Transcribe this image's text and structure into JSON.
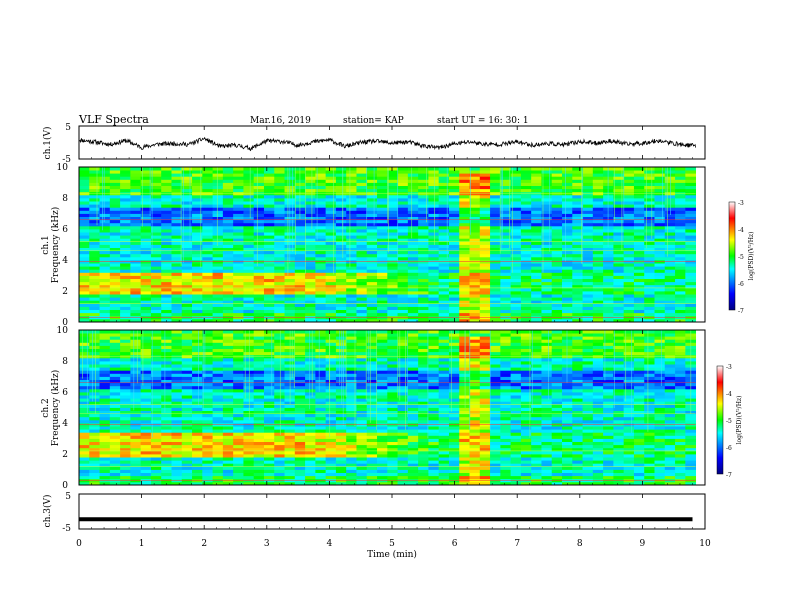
{
  "header": {
    "title": "VLF Spectra",
    "date": "Mar.16, 2019",
    "station": "station= KAP",
    "start_time": "start  UT =   16: 30: 1"
  },
  "chart_data": [
    {
      "type": "line",
      "panel": "ch1-waveform",
      "ylabel": "ch.1(V)",
      "ylim": [
        -5,
        5
      ],
      "y_ticks": [
        "5",
        "-5"
      ],
      "xlim": [
        0,
        10
      ],
      "x_minutes": [
        0,
        0.25,
        0.5,
        0.75,
        1,
        1.25,
        1.5,
        1.75,
        2,
        2.25,
        2.5,
        2.75,
        3,
        3.25,
        3.5,
        3.75,
        4,
        4.25,
        4.5,
        4.75,
        5,
        5.25,
        5.5,
        5.75,
        6,
        6.25,
        6.5,
        6.75,
        7,
        7.25,
        7.5,
        7.75,
        8,
        8.25,
        8.5,
        8.75,
        9,
        9.25,
        9.5,
        9.75
      ],
      "values_v": [
        0.8,
        0.2,
        -0.6,
        0.6,
        -1.5,
        -0.5,
        -0.3,
        -0.6,
        1.2,
        -1.2,
        -0.8,
        -1.8,
        0.5,
        0.3,
        -0.8,
        0.2,
        0.8,
        -1.2,
        0.0,
        0.4,
        -0.2,
        0.2,
        -1.0,
        -1.6,
        -0.4,
        0.2,
        -0.6,
        -0.5,
        0.2,
        -0.8,
        -0.3,
        -0.7,
        0.3,
        -0.2,
        0.5,
        -0.5,
        -0.2,
        0.6,
        -0.3,
        -0.9
      ]
    },
    {
      "type": "heatmap",
      "panel": "ch1-spectrogram",
      "ylabel": "Frequency  (kHz)",
      "channel_label": "ch.1",
      "ylim_khz": [
        0,
        10
      ],
      "y_ticks": [
        "0",
        "2",
        "4",
        "6",
        "8",
        "10"
      ],
      "xlim": [
        0,
        10
      ],
      "colorbar": {
        "label": "log(PSD)(V²/Hz)",
        "range": [
          -7,
          -3
        ],
        "ticks": [
          "-3",
          "-4",
          "-5",
          "-6",
          "-7"
        ]
      },
      "bright_band_khz": [
        1.8,
        3.1
      ],
      "burst_minutes": [
        6.0,
        6.55
      ]
    },
    {
      "type": "heatmap",
      "panel": "ch2-spectrogram",
      "ylabel": "Frequency  (kHz)",
      "channel_label": "ch.2",
      "ylim_khz": [
        0,
        10
      ],
      "y_ticks": [
        "0",
        "2",
        "4",
        "6",
        "8",
        "10"
      ],
      "xlim": [
        0,
        10
      ],
      "colorbar": {
        "label": "log(PSD)(V²/Hz)",
        "range": [
          -7,
          -3
        ],
        "ticks": [
          "-3",
          "-4",
          "-5",
          "-6",
          "-7"
        ]
      },
      "bright_band_khz": [
        1.8,
        3.4
      ],
      "burst_minutes": [
        6.0,
        6.55
      ]
    },
    {
      "type": "line",
      "panel": "ch3-waveform",
      "ylabel": "ch.3(V)",
      "ylim": [
        -5,
        5
      ],
      "y_ticks": [
        "5",
        "-5"
      ],
      "xlim": [
        0,
        10
      ],
      "x_minutes": [
        0,
        9.8
      ],
      "values_v": [
        -2.2,
        -2.2
      ]
    }
  ],
  "x_axis": {
    "label": "Time  (min)",
    "ticks": [
      "0",
      "1",
      "2",
      "3",
      "4",
      "5",
      "6",
      "7",
      "8",
      "9",
      "10"
    ]
  }
}
